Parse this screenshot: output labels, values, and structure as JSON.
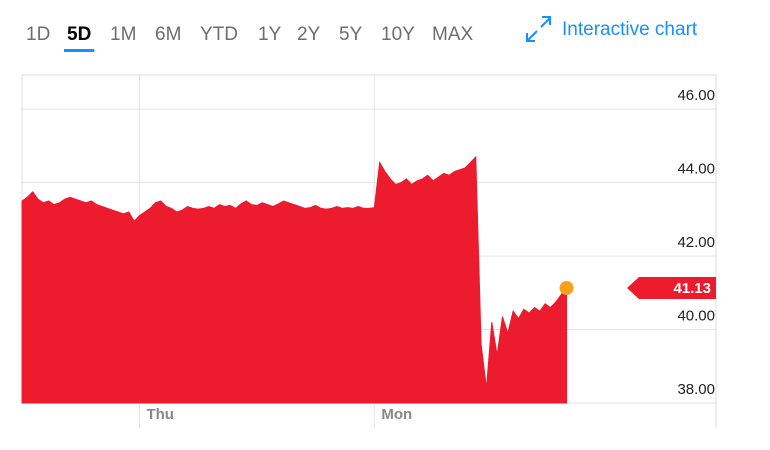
{
  "toolbar": {
    "ranges": [
      "1D",
      "5D",
      "1M",
      "6M",
      "YTD",
      "1Y",
      "2Y",
      "5Y",
      "10Y",
      "MAX"
    ],
    "selected_range": 1,
    "link": "Interactive chart"
  },
  "chart_data": {
    "type": "area",
    "color": "#ec1b2e",
    "marker_color": "#f7a11a",
    "x": [
      0,
      1,
      2,
      3,
      4,
      5,
      6,
      7,
      8,
      9,
      10,
      11,
      12,
      13,
      14,
      15,
      16,
      17,
      18,
      19,
      20,
      21,
      22,
      23,
      24,
      25,
      26,
      27,
      28,
      29,
      30,
      31,
      32,
      33,
      34,
      35,
      36,
      37,
      38,
      39,
      40,
      41,
      42,
      43,
      44,
      45,
      46,
      47,
      48,
      49,
      50,
      51,
      52,
      53,
      54,
      55,
      56,
      57,
      58,
      59,
      60,
      61,
      62,
      63,
      64,
      65,
      66,
      67,
      68,
      69,
      70,
      71,
      72,
      73,
      74,
      75,
      76,
      77,
      78,
      79,
      80,
      81,
      82,
      83,
      84,
      85,
      86,
      87,
      88,
      89,
      90,
      91,
      92,
      93,
      94,
      95,
      96,
      97,
      98,
      99,
      100,
      101,
      102
    ],
    "values": [
      43.5,
      43.6,
      43.75,
      43.55,
      43.45,
      43.5,
      43.4,
      43.45,
      43.55,
      43.6,
      43.55,
      43.5,
      43.45,
      43.5,
      43.4,
      43.35,
      43.3,
      43.25,
      43.2,
      43.15,
      43.2,
      42.95,
      43.1,
      43.2,
      43.3,
      43.45,
      43.5,
      43.35,
      43.3,
      43.2,
      43.25,
      43.35,
      43.3,
      43.28,
      43.3,
      43.35,
      43.3,
      43.4,
      43.35,
      43.38,
      43.3,
      43.42,
      43.5,
      43.4,
      43.38,
      43.45,
      43.4,
      43.35,
      43.42,
      43.5,
      43.45,
      43.4,
      43.35,
      43.3,
      43.32,
      43.38,
      43.3,
      43.28,
      43.3,
      43.35,
      43.3,
      43.32,
      43.3,
      43.35,
      43.3,
      43.3,
      43.32,
      44.55,
      44.3,
      44.1,
      43.95,
      44.0,
      44.1,
      43.95,
      44.05,
      44.1,
      44.2,
      44.05,
      44.15,
      44.25,
      44.2,
      44.3,
      44.35,
      44.4,
      44.55,
      44.7,
      39.6,
      38.4,
      40.2,
      39.3,
      40.35,
      39.9,
      40.5,
      40.3,
      40.55,
      40.45,
      40.6,
      40.5,
      40.7,
      40.6,
      40.75,
      40.95,
      41.13
    ],
    "xlim": [
      0,
      130
    ],
    "xticks": [
      {
        "value": 22,
        "label": "Thu"
      },
      {
        "value": 66,
        "label": "Mon"
      }
    ],
    "ylim": [
      38,
      46.93
    ],
    "yticks": [
      {
        "value": 38,
        "label": "38.00"
      },
      {
        "value": 40,
        "label": "40.00"
      },
      {
        "value": 42,
        "label": "42.00"
      },
      {
        "value": 44,
        "label": "44.00"
      },
      {
        "value": 46,
        "label": "46.00"
      }
    ],
    "grid": true,
    "annotations": [
      {
        "value": 41.13
      }
    ]
  }
}
